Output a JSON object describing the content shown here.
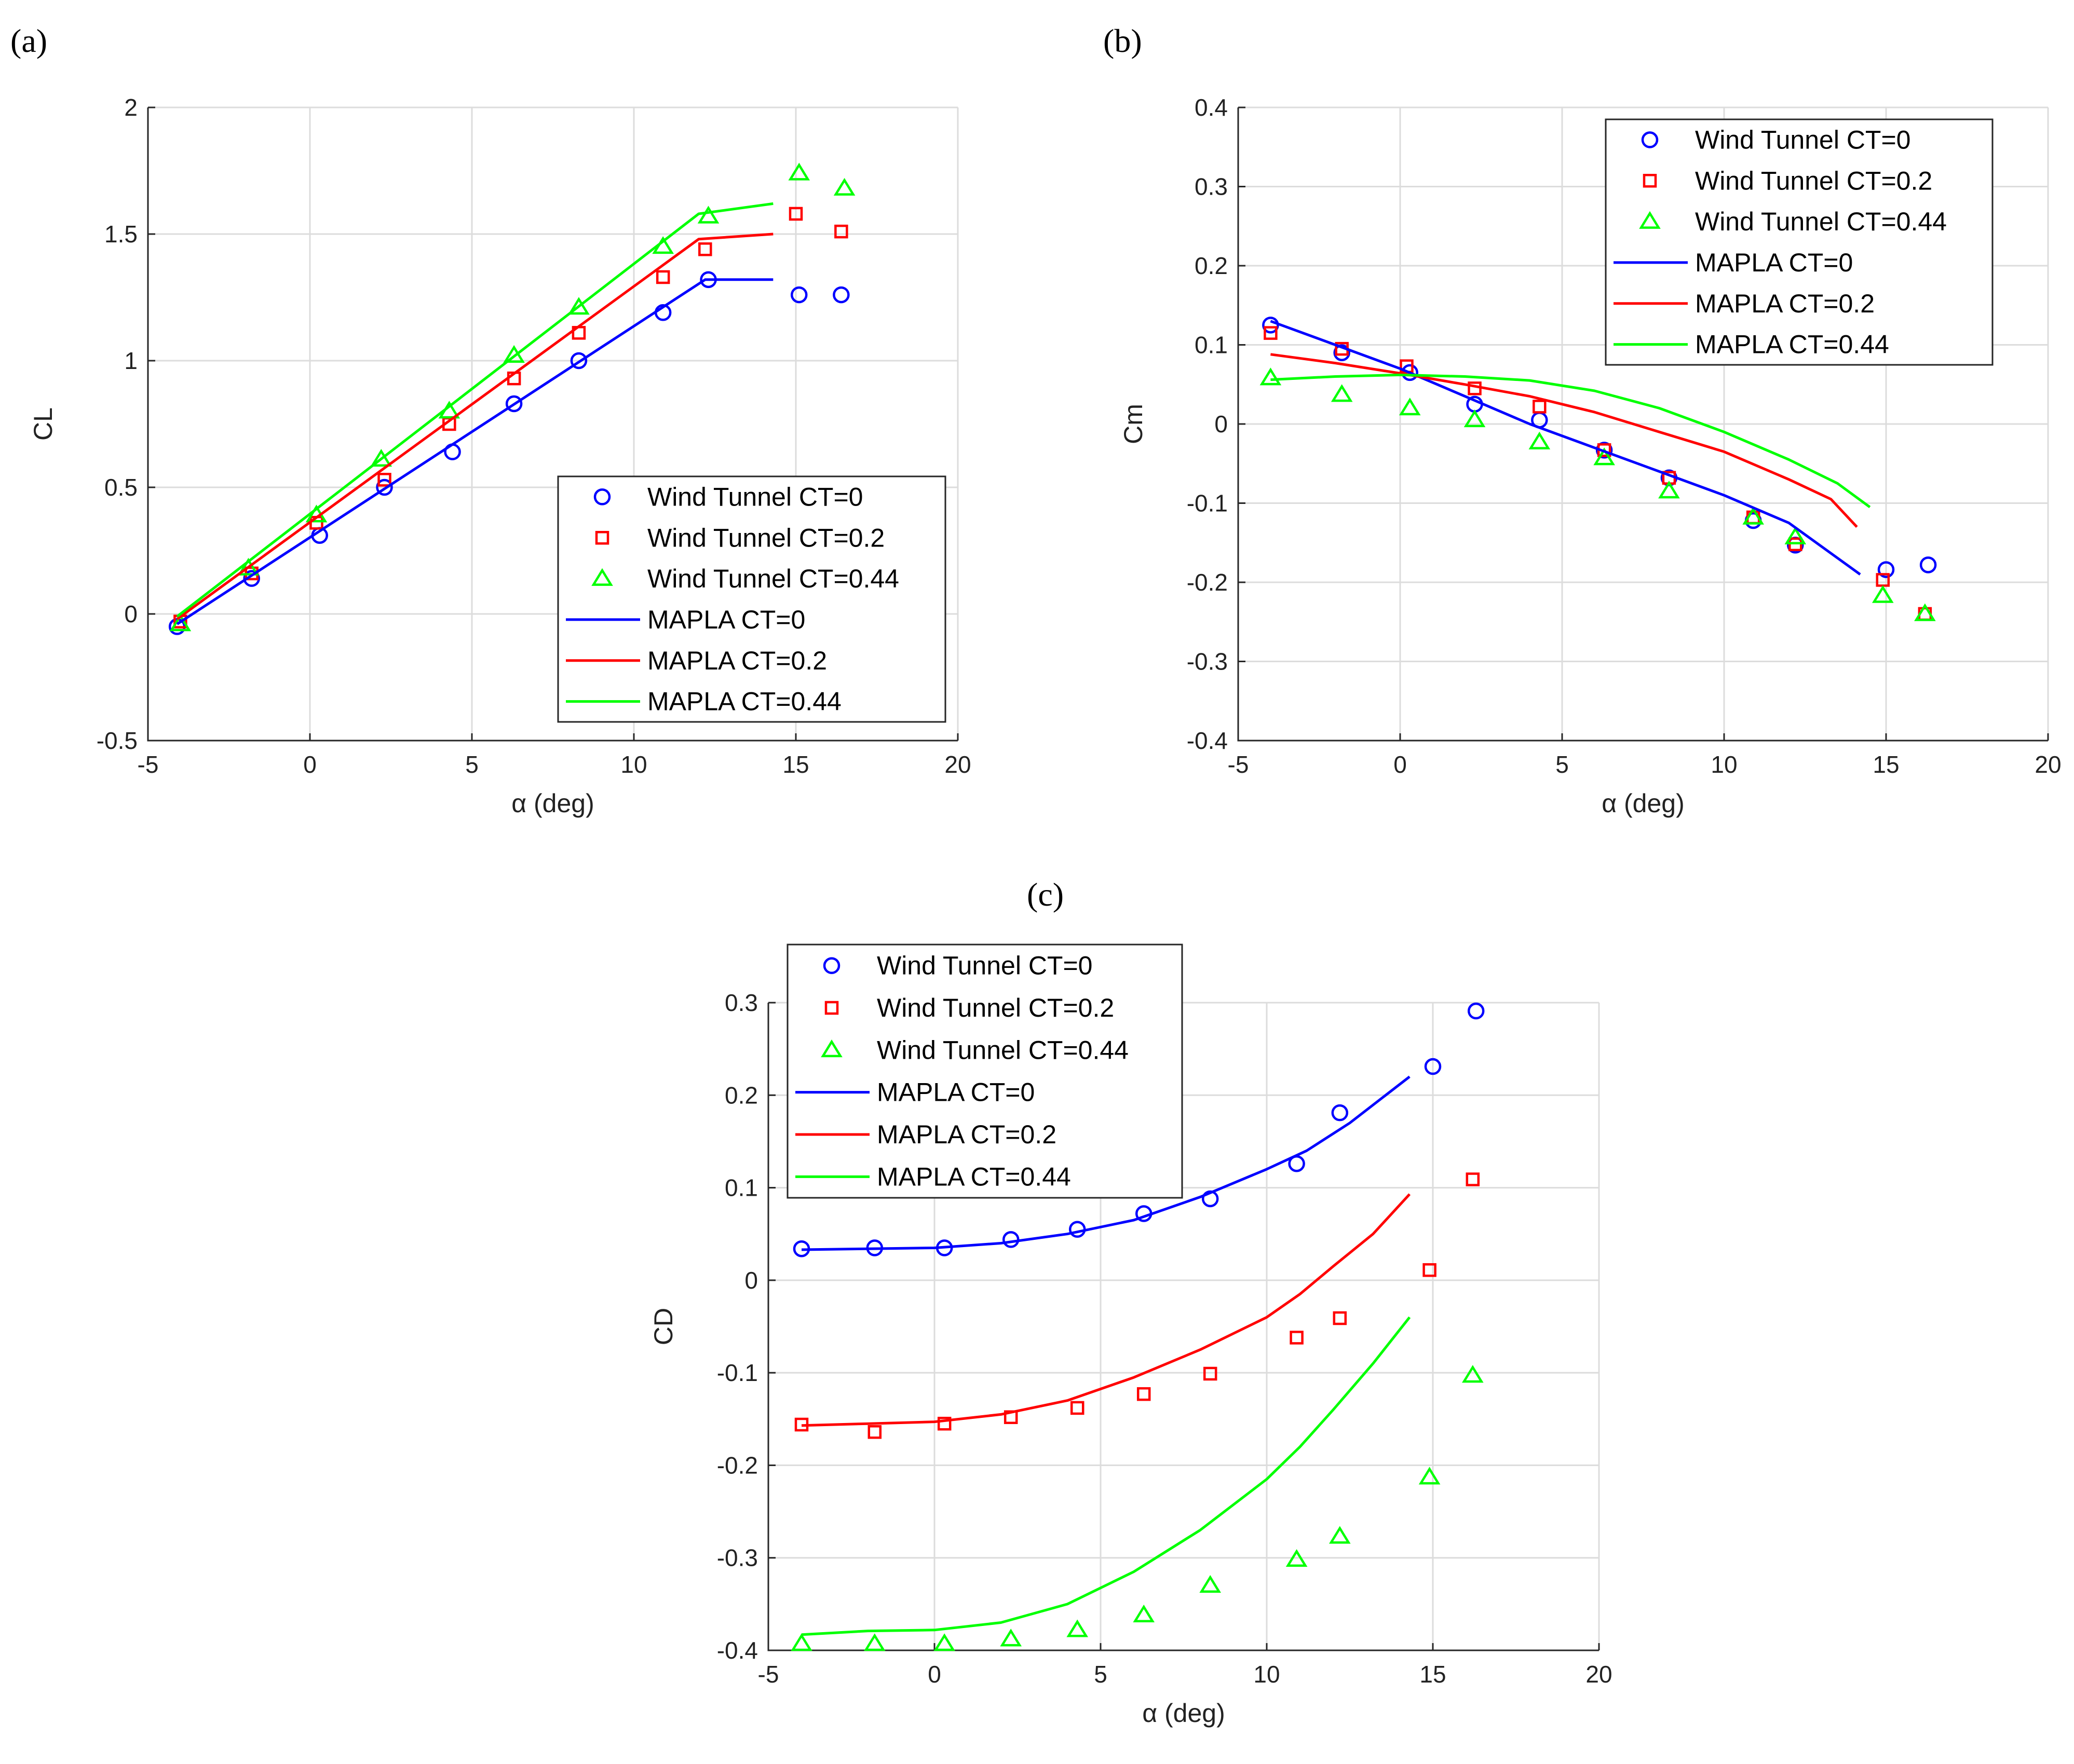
{
  "colors": {
    "ct0": "#0000ff",
    "ct02": "#ff0000",
    "ct044": "#00ff00"
  },
  "chart_data": [
    {
      "type": "scatter",
      "panel_label": "(a)",
      "xlabel": "α (deg)",
      "ylabel": "CL",
      "xlim": [
        -5,
        20
      ],
      "ylim": [
        -0.5,
        2
      ],
      "xticks": [
        "-5",
        "0",
        "5",
        "10",
        "15",
        "20"
      ],
      "yticks": [
        "-0.5",
        "0",
        "0.5",
        "1",
        "1.5",
        "2"
      ],
      "grid": true,
      "legend_position": "bottom-right",
      "series": [
        {
          "name": "Wind Tunnel CT=0",
          "kind": "markers",
          "marker": "circle",
          "color": "#0000ff",
          "x": [
            -4.1,
            -1.8,
            0.3,
            2.3,
            4.4,
            6.3,
            8.3,
            10.9,
            12.3,
            15.1,
            16.4
          ],
          "y": [
            -0.05,
            0.14,
            0.31,
            0.5,
            0.64,
            0.83,
            1.0,
            1.19,
            1.32,
            1.26,
            1.26
          ]
        },
        {
          "name": "Wind Tunnel CT=0.2",
          "kind": "markers",
          "marker": "square",
          "color": "#ff0000",
          "x": [
            -4.0,
            -1.8,
            0.2,
            2.3,
            4.3,
            6.3,
            8.3,
            10.9,
            12.2,
            15.0,
            16.4
          ],
          "y": [
            -0.03,
            0.16,
            0.36,
            0.53,
            0.75,
            0.93,
            1.11,
            1.33,
            1.44,
            1.58,
            1.51
          ]
        },
        {
          "name": "Wind Tunnel CT=0.44",
          "kind": "markers",
          "marker": "triangle",
          "color": "#00ff00",
          "x": [
            -4.0,
            -1.9,
            0.2,
            2.2,
            4.3,
            6.3,
            8.3,
            10.9,
            12.3,
            15.1,
            16.5
          ],
          "y": [
            -0.04,
            0.18,
            0.39,
            0.61,
            0.8,
            1.02,
            1.21,
            1.45,
            1.57,
            1.74,
            1.68
          ]
        },
        {
          "name": "MAPLA CT=0",
          "kind": "line",
          "color": "#0000ff",
          "x": [
            -4.1,
            12.2,
            14.3
          ],
          "y": [
            -0.04,
            1.32,
            1.32
          ]
        },
        {
          "name": "MAPLA CT=0.2",
          "kind": "line",
          "color": "#ff0000",
          "x": [
            -4.1,
            12.0,
            14.3
          ],
          "y": [
            -0.02,
            1.48,
            1.5
          ]
        },
        {
          "name": "MAPLA CT=0.44",
          "kind": "line",
          "color": "#00ff00",
          "x": [
            -4.1,
            12.0,
            14.3
          ],
          "y": [
            -0.01,
            1.58,
            1.62
          ]
        }
      ]
    },
    {
      "type": "scatter",
      "panel_label": "(b)",
      "xlabel": "α (deg)",
      "ylabel": "Cm",
      "xlim": [
        -5,
        20
      ],
      "ylim": [
        -0.4,
        0.4
      ],
      "xticks": [
        "-5",
        "0",
        "5",
        "10",
        "15",
        "20"
      ],
      "yticks": [
        "-0.4",
        "-0.3",
        "-0.2",
        "-0.1",
        "0",
        "0.1",
        "0.2",
        "0.3",
        "0.4"
      ],
      "grid": true,
      "legend_position": "top-right",
      "series": [
        {
          "name": "Wind Tunnel CT=0",
          "kind": "markers",
          "marker": "circle",
          "color": "#0000ff",
          "x": [
            -4.0,
            -1.8,
            0.3,
            2.3,
            4.3,
            6.3,
            8.3,
            10.9,
            12.2,
            15.0,
            16.3
          ],
          "y": [
            0.125,
            0.09,
            0.065,
            0.025,
            0.005,
            -0.033,
            -0.068,
            -0.122,
            -0.153,
            -0.184,
            -0.178
          ]
        },
        {
          "name": "Wind Tunnel CT=0.2",
          "kind": "markers",
          "marker": "square",
          "color": "#ff0000",
          "x": [
            -4.0,
            -1.8,
            0.2,
            2.3,
            4.3,
            6.3,
            8.3,
            10.9,
            12.2,
            14.9,
            16.2
          ],
          "y": [
            0.115,
            0.095,
            0.073,
            0.045,
            0.022,
            -0.033,
            -0.068,
            -0.118,
            -0.152,
            -0.197,
            -0.24
          ]
        },
        {
          "name": "Wind Tunnel CT=0.44",
          "kind": "markers",
          "marker": "triangle",
          "color": "#00ff00",
          "x": [
            -4.0,
            -1.8,
            0.3,
            2.3,
            4.3,
            6.3,
            8.3,
            10.9,
            12.2,
            14.9,
            16.2
          ],
          "y": [
            0.058,
            0.037,
            0.02,
            0.005,
            -0.023,
            -0.043,
            -0.085,
            -0.118,
            -0.143,
            -0.217,
            -0.24
          ]
        },
        {
          "name": "MAPLA CT=0",
          "kind": "line",
          "color": "#0000ff",
          "x": [
            -4.0,
            -2.0,
            0.0,
            2.0,
            4.0,
            6.0,
            8.0,
            10.0,
            12.0,
            14.2
          ],
          "y": [
            0.13,
            0.1,
            0.07,
            0.035,
            0.0,
            -0.03,
            -0.06,
            -0.09,
            -0.125,
            -0.19
          ]
        },
        {
          "name": "MAPLA CT=0.2",
          "kind": "line",
          "color": "#ff0000",
          "x": [
            -4.0,
            -2.0,
            0.0,
            2.0,
            4.0,
            6.0,
            8.0,
            10.0,
            12.0,
            13.3,
            14.1
          ],
          "y": [
            0.088,
            0.077,
            0.064,
            0.05,
            0.035,
            0.015,
            -0.01,
            -0.035,
            -0.07,
            -0.095,
            -0.13
          ]
        },
        {
          "name": "MAPLA CT=0.44",
          "kind": "line",
          "color": "#00ff00",
          "x": [
            -4.0,
            -2.0,
            0.0,
            2.0,
            4.0,
            6.0,
            8.0,
            10.0,
            12.0,
            13.5,
            14.5
          ],
          "y": [
            0.056,
            0.06,
            0.062,
            0.06,
            0.055,
            0.042,
            0.02,
            -0.01,
            -0.045,
            -0.075,
            -0.105
          ]
        }
      ]
    },
    {
      "type": "scatter",
      "panel_label": "(c)",
      "xlabel": "α (deg)",
      "ylabel": "CD",
      "xlim": [
        -5,
        20
      ],
      "ylim": [
        -0.4,
        0.3
      ],
      "xticks": [
        "-5",
        "0",
        "5",
        "10",
        "15",
        "20"
      ],
      "yticks": [
        "-0.4",
        "-0.3",
        "-0.2",
        "-0.1",
        "0",
        "0.1",
        "0.2",
        "0.3"
      ],
      "grid": true,
      "legend_position": "top-left",
      "series": [
        {
          "name": "Wind Tunnel CT=0",
          "kind": "markers",
          "marker": "circle",
          "color": "#0000ff",
          "x": [
            -4.0,
            -1.8,
            0.3,
            2.3,
            4.3,
            6.3,
            8.3,
            10.9,
            12.2,
            15.0,
            16.3
          ],
          "y": [
            0.034,
            0.035,
            0.035,
            0.044,
            0.055,
            0.072,
            0.088,
            0.126,
            0.181,
            0.231,
            0.291
          ]
        },
        {
          "name": "Wind Tunnel CT=0.2",
          "kind": "markers",
          "marker": "square",
          "color": "#ff0000",
          "x": [
            -4.0,
            -1.8,
            0.3,
            2.3,
            4.3,
            6.3,
            8.3,
            10.9,
            12.2,
            14.9,
            16.2
          ],
          "y": [
            -0.156,
            -0.164,
            -0.155,
            -0.148,
            -0.138,
            -0.123,
            -0.101,
            -0.062,
            -0.041,
            0.011,
            0.109
          ]
        },
        {
          "name": "Wind Tunnel CT=0.44",
          "kind": "markers",
          "marker": "triangle",
          "color": "#00ff00",
          "x": [
            -4.0,
            -1.8,
            0.3,
            2.3,
            4.3,
            6.3,
            8.3,
            10.9,
            12.2,
            14.9,
            16.2
          ],
          "y": [
            -0.393,
            -0.393,
            -0.393,
            -0.388,
            -0.378,
            -0.362,
            -0.33,
            -0.302,
            -0.277,
            -0.213,
            -0.103
          ]
        },
        {
          "name": "MAPLA CT=0",
          "kind": "line",
          "color": "#0000ff",
          "x": [
            -4.0,
            -2.0,
            0.0,
            2.0,
            4.0,
            6.0,
            8.0,
            10.0,
            11.2,
            12.5,
            14.3
          ],
          "y": [
            0.033,
            0.034,
            0.035,
            0.04,
            0.05,
            0.065,
            0.09,
            0.12,
            0.14,
            0.17,
            0.22
          ]
        },
        {
          "name": "MAPLA CT=0.2",
          "kind": "line",
          "color": "#ff0000",
          "x": [
            -4.0,
            -2.0,
            0.0,
            2.0,
            4.0,
            6.0,
            8.0,
            10.0,
            11.0,
            12.0,
            13.2,
            14.3
          ],
          "y": [
            -0.157,
            -0.155,
            -0.153,
            -0.145,
            -0.13,
            -0.105,
            -0.075,
            -0.04,
            -0.015,
            0.015,
            0.05,
            0.093
          ]
        },
        {
          "name": "MAPLA CT=0.44",
          "kind": "line",
          "color": "#00ff00",
          "x": [
            -4.0,
            -2.0,
            0.0,
            2.0,
            4.0,
            6.0,
            8.0,
            10.0,
            11.0,
            12.0,
            13.2,
            14.3
          ],
          "y": [
            -0.383,
            -0.379,
            -0.378,
            -0.37,
            -0.35,
            -0.315,
            -0.27,
            -0.215,
            -0.18,
            -0.14,
            -0.09,
            -0.04
          ]
        }
      ]
    }
  ]
}
